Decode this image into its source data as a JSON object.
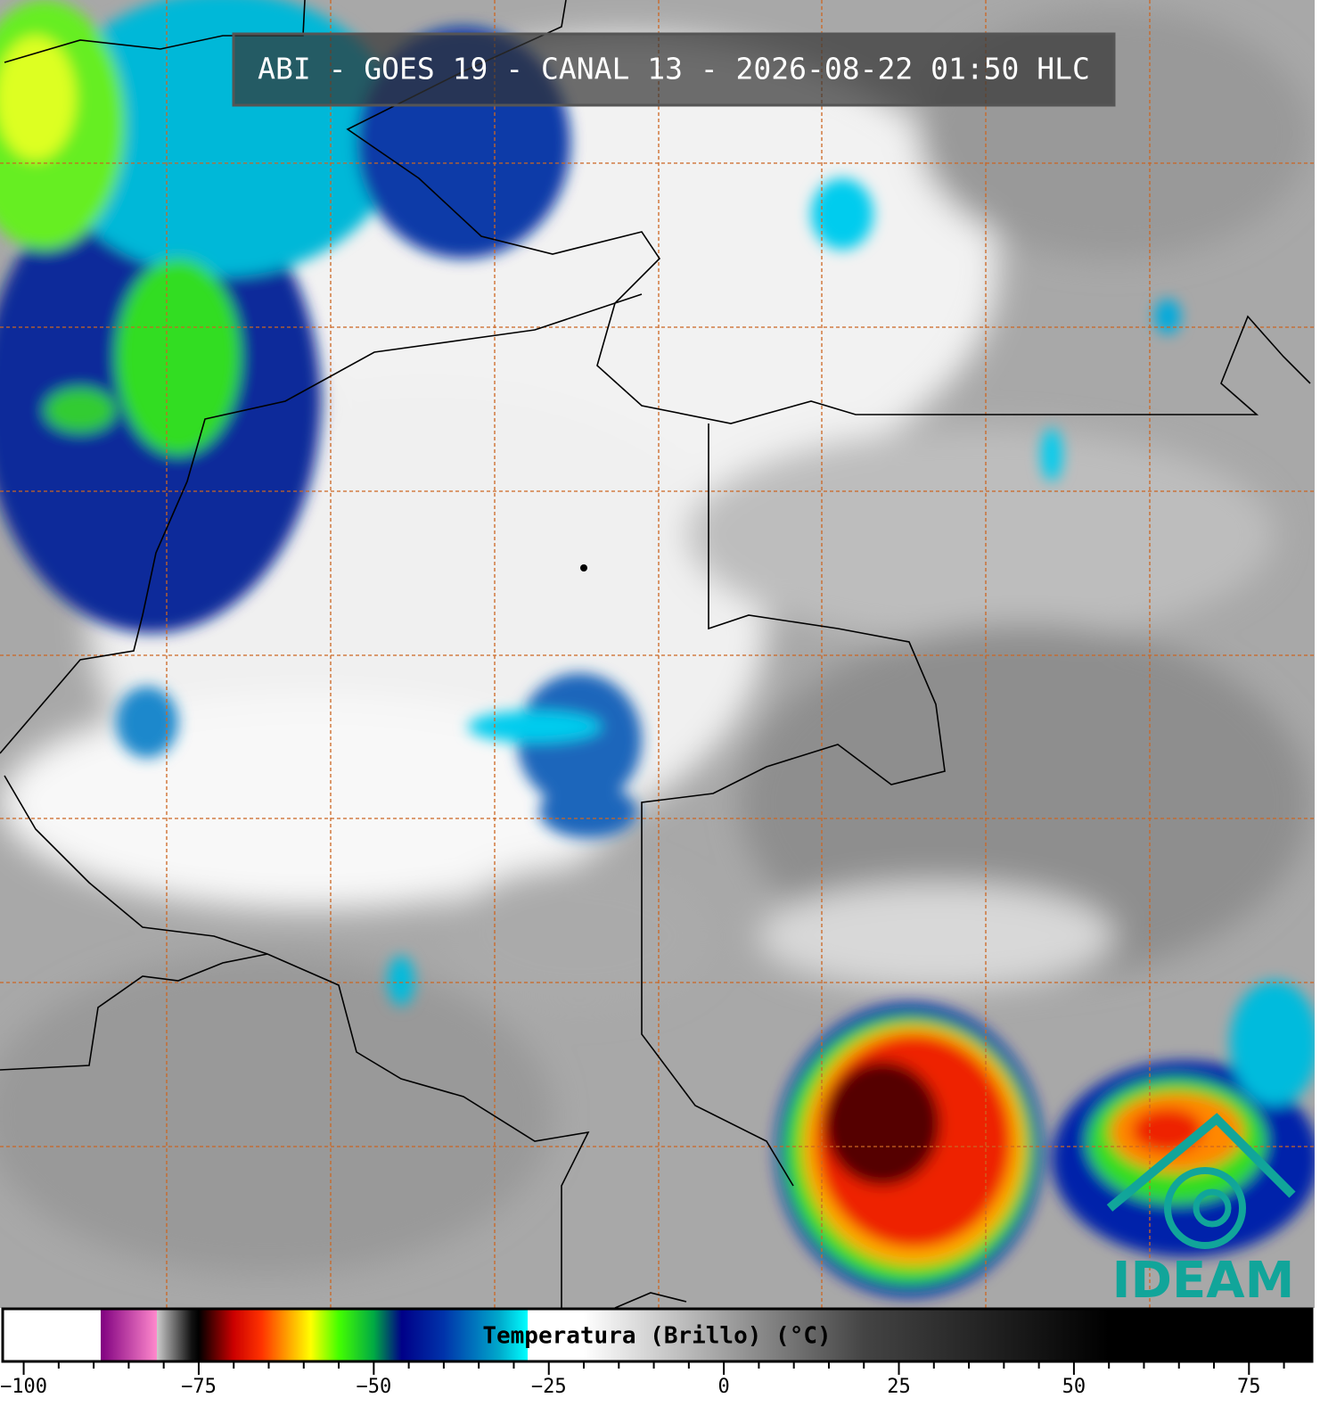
{
  "title": "ABI - GOES 19 - CANAL 13 - 2026-08-22 01:50 HLC",
  "logo": "IDEAM",
  "colorbar": {
    "label": "Temperatura (Brillo) (°C)",
    "lim": [
      -103,
      84
    ],
    "ticks": [
      {
        "value": -100,
        "label": "−100"
      },
      {
        "value": -75,
        "label": "−75"
      },
      {
        "value": -50,
        "label": "−50"
      },
      {
        "value": -25,
        "label": "−25"
      },
      0,
      25,
      50,
      75
    ],
    "minor_ticks": [
      -95,
      -90,
      -85,
      -80,
      -70,
      -65,
      -60,
      -55,
      -45,
      -40,
      -35,
      -30,
      -20,
      -15,
      -10,
      -5,
      5,
      10,
      15,
      20,
      30,
      35,
      40,
      45,
      55,
      60,
      65,
      70,
      80
    ],
    "stops": [
      {
        "value": -103,
        "color": "#ffffff"
      },
      {
        "value": -89,
        "color": "#ffffff"
      },
      {
        "value": -89,
        "color": "#800080"
      },
      {
        "value": -81,
        "color": "#ff88cc"
      },
      {
        "value": -81,
        "color": "#cccccc"
      },
      {
        "value": -76,
        "color": "#111111"
      },
      {
        "value": -75,
        "color": "#000000"
      },
      {
        "value": -70,
        "color": "#cc0000"
      },
      {
        "value": -66,
        "color": "#ff3300"
      },
      {
        "value": -62,
        "color": "#ffaa00"
      },
      {
        "value": -59,
        "color": "#ffff00"
      },
      {
        "value": -55,
        "color": "#44ff00"
      },
      {
        "value": -50,
        "color": "#00aa44"
      },
      {
        "value": -46,
        "color": "#000088"
      },
      {
        "value": -40,
        "color": "#0033aa"
      },
      {
        "value": -32,
        "color": "#00aacc"
      },
      {
        "value": -28,
        "color": "#00ffff"
      },
      {
        "value": -28,
        "color": "#ffffff"
      },
      {
        "value": -20,
        "color": "#ffffff"
      },
      {
        "value": 20,
        "color": "#444444"
      },
      {
        "value": 55,
        "color": "#000000"
      },
      {
        "value": 84,
        "color": "#000000"
      }
    ]
  }
}
